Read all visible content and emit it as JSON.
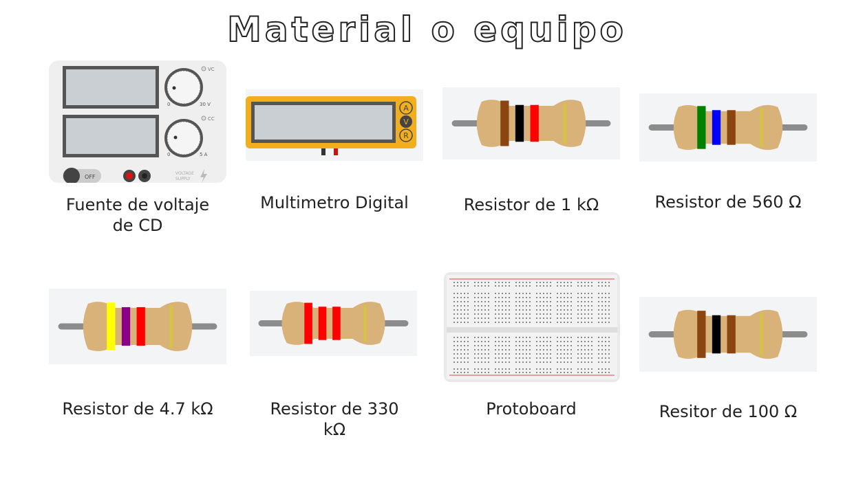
{
  "title": "Material o equipo",
  "items": [
    {
      "label": "Fuente de voltaje de  CD",
      "line1": "Fuente de voltaje",
      "line2": "de  CD"
    },
    {
      "label": "Multimetro Digital"
    },
    {
      "label": "Resistor de 1 kΩ"
    },
    {
      "label": "Resistor de 560 Ω"
    },
    {
      "label": "Resistor de 4.7 kΩ"
    },
    {
      "label": "Resistor de 330 kΩ",
      "line1": "Resistor de 330",
      "line2": "kΩ"
    },
    {
      "label": "Protoboard"
    },
    {
      "label": "Resitor de 100 Ω"
    }
  ],
  "power_supply": {
    "vc_label": "VC",
    "cc_label": "CC",
    "knob1_min": "0",
    "knob1_max": "30 V",
    "knob2_min": "0",
    "knob2_max": "5 A",
    "switch_label": "OFF",
    "brand_line1": "VOLTAGE",
    "brand_line2": "SUPPLY"
  },
  "multimeter": {
    "btn_a": "A",
    "btn_v": "V",
    "btn_r": "R"
  },
  "colors": {
    "brown": "#8b4513",
    "black": "#000000",
    "red": "#ff0000",
    "green": "#008000",
    "blue": "#0000ff",
    "yellow": "#ffff00",
    "violet": "#8b008b",
    "gold": "#d4c24a",
    "body": "#d9b27a",
    "lead": "#8c8c8c"
  }
}
